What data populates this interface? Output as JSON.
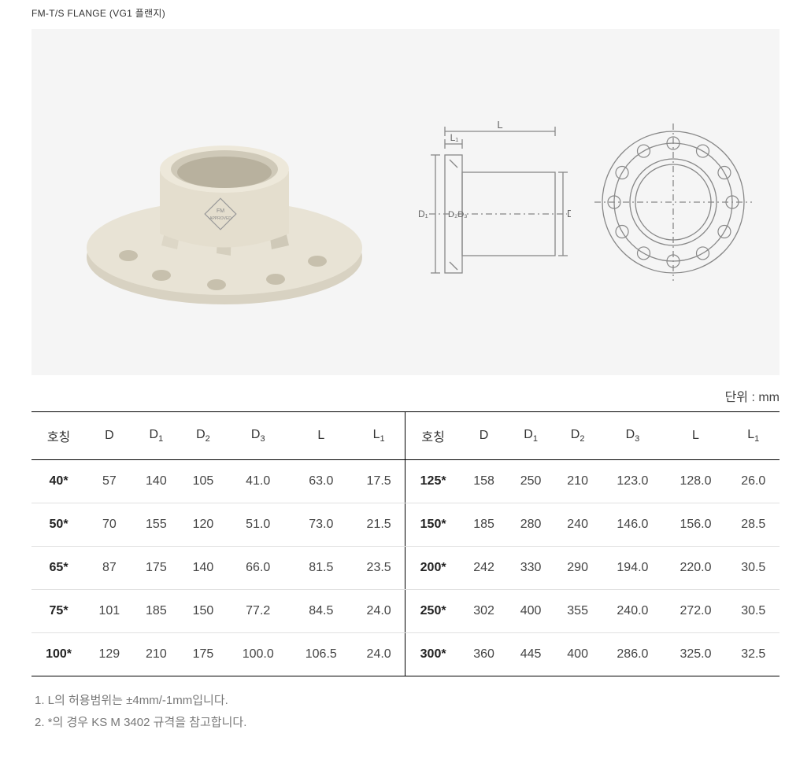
{
  "header": {
    "title": "FM-T/S FLANGE (VG1 플랜지)"
  },
  "imagePanel": {
    "backgroundColor": "#f5f5f5",
    "photo": {
      "label": "FM APPROVED",
      "bodyColor": "#e8e3d5",
      "shadowColor": "#cfc9b8"
    },
    "sideDiagram": {
      "strokeColor": "#888888",
      "labels": {
        "L": "L",
        "L1": "L₁",
        "D": "D",
        "D1": "D₁",
        "D2": "D₂",
        "D3": "D₃"
      }
    },
    "frontDiagram": {
      "strokeColor": "#888888",
      "holeCount": 12
    }
  },
  "unit": "단위 :  mm",
  "table": {
    "columns": [
      "호칭",
      "D",
      "D₁",
      "D₂",
      "D₃",
      "L",
      "L₁",
      "호칭",
      "D",
      "D₁",
      "D₂",
      "D₃",
      "L",
      "L₁"
    ],
    "rows": [
      [
        "40*",
        "57",
        "140",
        "105",
        "41.0",
        "63.0",
        "17.5",
        "125*",
        "158",
        "250",
        "210",
        "123.0",
        "128.0",
        "26.0"
      ],
      [
        "50*",
        "70",
        "155",
        "120",
        "51.0",
        "73.0",
        "21.5",
        "150*",
        "185",
        "280",
        "240",
        "146.0",
        "156.0",
        "28.5"
      ],
      [
        "65*",
        "87",
        "175",
        "140",
        "66.0",
        "81.5",
        "23.5",
        "200*",
        "242",
        "330",
        "290",
        "194.0",
        "220.0",
        "30.5"
      ],
      [
        "75*",
        "101",
        "185",
        "150",
        "77.2",
        "84.5",
        "24.0",
        "250*",
        "302",
        "400",
        "355",
        "240.0",
        "272.0",
        "30.5"
      ],
      [
        "100*",
        "129",
        "210",
        "175",
        "100.0",
        "106.5",
        "24.0",
        "300*",
        "360",
        "445",
        "400",
        "286.0",
        "325.0",
        "32.5"
      ]
    ],
    "borderColor": "#000000",
    "rowDividerColor": "#e0e0e0"
  },
  "footnotes": [
    "1.  L의 허용범위는 ±4mm/-1mm입니다.",
    "2. *의 경우 KS M 3402 규격을 참고합니다."
  ]
}
